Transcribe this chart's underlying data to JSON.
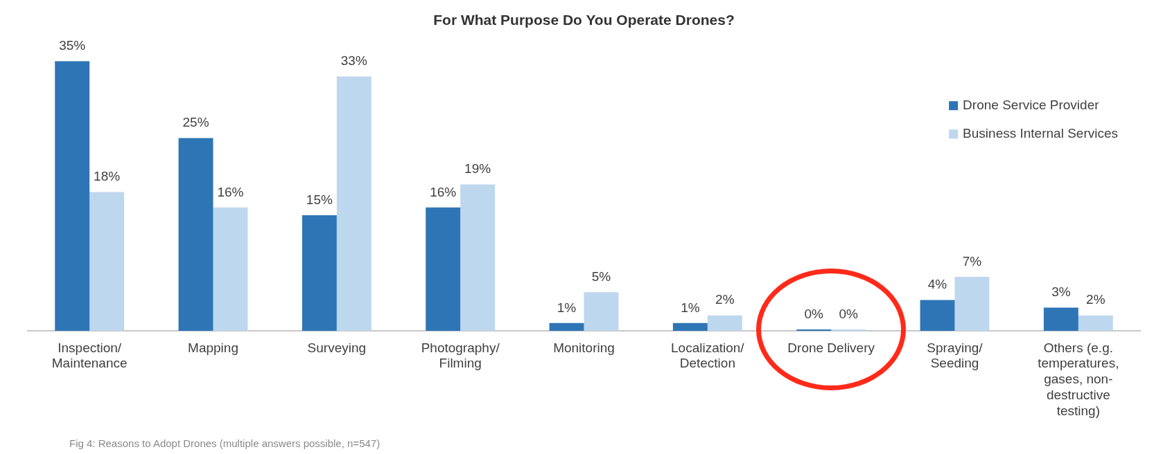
{
  "chart_data": {
    "type": "bar",
    "title": "For What Purpose Do You Operate Drones?",
    "categories": [
      "Inspection/ Maintenance",
      "Mapping",
      "Surveying",
      "Photography/ Filming",
      "Monitoring",
      "Localization/ Detection",
      "Drone Delivery",
      "Spraying/ Seeding",
      "Others (e.g. temperatures, gases, non-destructive testing)"
    ],
    "series": [
      {
        "name": "Drone Service Provider",
        "color": "#2e75b6",
        "values": [
          35,
          25,
          15,
          16,
          1,
          1,
          0,
          4,
          3
        ],
        "value_labels": [
          "35%",
          "25%",
          "15%",
          "16%",
          "1%",
          "1%",
          "0%",
          "4%",
          "3%"
        ]
      },
      {
        "name": "Business Internal Services",
        "color": "#bdd7ee",
        "values": [
          18,
          16,
          33,
          19,
          5,
          2,
          0,
          7,
          2
        ],
        "value_labels": [
          "18%",
          "16%",
          "33%",
          "19%",
          "5%",
          "2%",
          "0%",
          "7%",
          "2%"
        ]
      }
    ],
    "legend": "top right",
    "annotations": [
      "Fig 4: Reasons to Adopt Drones (multiple answers possible, n=547)"
    ]
  }
}
